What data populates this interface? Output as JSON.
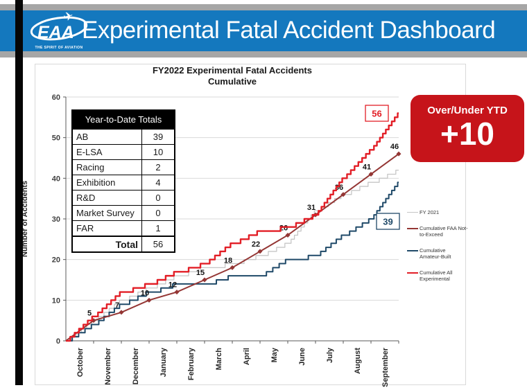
{
  "header": {
    "logo_text": "EAA",
    "logo_tagline": "THE SPIRIT OF AVIATION",
    "title": "Experimental Fatal Accident Dashboard"
  },
  "chart": {
    "title_line1": "FY2022 Experimental Fatal Accidents",
    "title_line2": "Cumulative",
    "y_axis_label": "Number of Accidents"
  },
  "ytd_table": {
    "header": "Year-to-Date Totals",
    "rows": [
      {
        "label": "AB",
        "value": "39"
      },
      {
        "label": "E-LSA",
        "value": "10"
      },
      {
        "label": "Racing",
        "value": "2"
      },
      {
        "label": "Exhibition",
        "value": "4"
      },
      {
        "label": "R&D",
        "value": "0"
      },
      {
        "label": "Market Survey",
        "value": "0"
      },
      {
        "label": "FAR",
        "value": "1"
      }
    ],
    "total_label": "Total",
    "total_value": "56"
  },
  "over_under": {
    "label": "Over/Under YTD",
    "value": "+10",
    "bg_color": "#c6141a"
  },
  "legend": [
    {
      "label": "FY 2021",
      "color": "#c6c6c6",
      "thickness": 1.5
    },
    {
      "label": "Cumulative FAA Not-to-Exceed",
      "color": "#943634",
      "thickness": 2.5
    },
    {
      "label": "Cumulative Amateur-Built",
      "color": "#1f4968",
      "thickness": 2.5
    },
    {
      "label": "Cumulative All Experimental",
      "color": "#e21e26",
      "thickness": 2.5
    }
  ],
  "colors": {
    "header_blue": "#1478be",
    "strip_gray": "#a6a6a6",
    "grid": "#d9d9d9",
    "axis": "#595959"
  },
  "chart_data": {
    "type": "line",
    "title": "FY2022 Experimental Fatal Accidents Cumulative",
    "xlabel": "",
    "ylabel": "Number of Accidents",
    "ylim": [
      0,
      60
    ],
    "yticks": [
      0,
      10,
      20,
      30,
      40,
      50,
      60
    ],
    "grid": "horizontal",
    "legend_position": "right",
    "x_categories": [
      "October",
      "November",
      "December",
      "January",
      "February",
      "March",
      "April",
      "May",
      "June",
      "July",
      "August",
      "September"
    ],
    "series": [
      {
        "name": "FY 2021",
        "style": "step",
        "color": "#c6c6c6",
        "width": 1.3,
        "month_end_cumulative": [
          0,
          5,
          10,
          13,
          16,
          18,
          19,
          21,
          24,
          32,
          36,
          39,
          42
        ]
      },
      {
        "name": "Cumulative Amateur-Built",
        "style": "step",
        "color": "#1f4968",
        "width": 2,
        "month_end_cumulative": [
          0,
          4,
          9,
          12,
          14,
          14,
          16,
          16,
          20,
          21,
          26,
          30,
          39
        ],
        "end_label": "39"
      },
      {
        "name": "Cumulative FAA Not-to-Exceed",
        "style": "line-markers",
        "color": "#943634",
        "width": 2,
        "month_end_cumulative": [
          0,
          5,
          7,
          10,
          12,
          15,
          18,
          22,
          26,
          31,
          36,
          41,
          46
        ],
        "point_labels": [
          "5",
          "7",
          "10",
          "12",
          "15",
          "18",
          "22",
          "26",
          "31",
          "36",
          "41",
          "46"
        ]
      },
      {
        "name": "Cumulative All Experimental",
        "style": "step",
        "color": "#e21e26",
        "width": 2.4,
        "month_end_cumulative": [
          0,
          6,
          12,
          14,
          17,
          19,
          24,
          27,
          28,
          31,
          40,
          47,
          56
        ],
        "end_label": "56"
      }
    ]
  }
}
